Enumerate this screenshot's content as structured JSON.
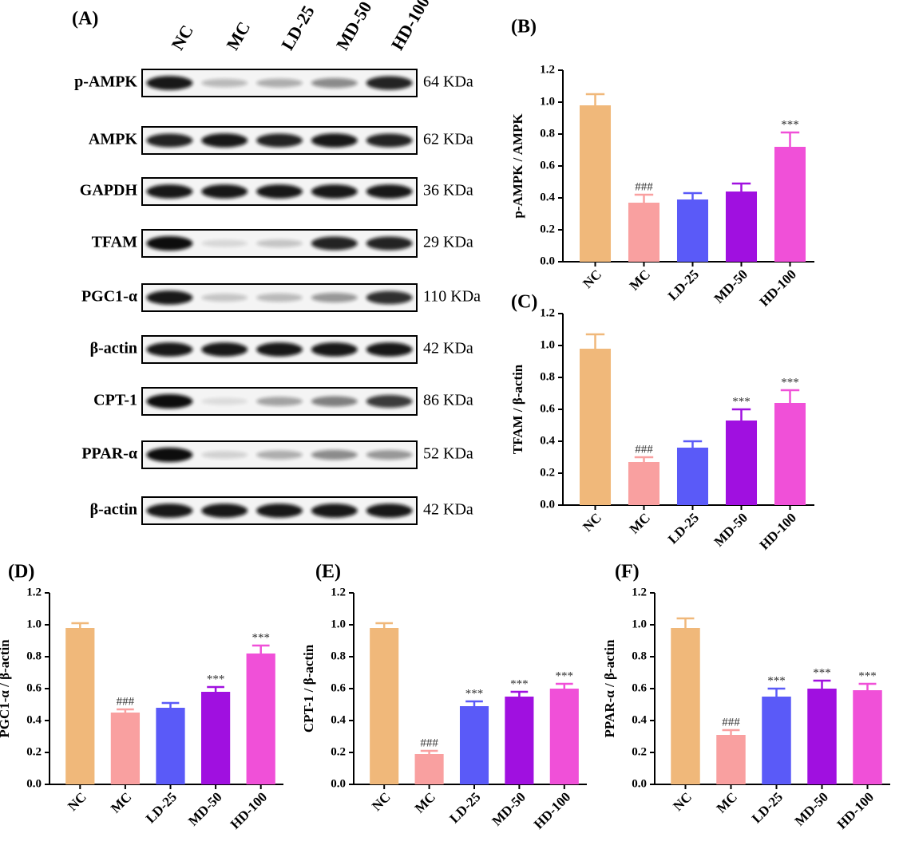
{
  "blot": {
    "panel": "(A)",
    "lanes": [
      "NC",
      "MC",
      "LD-25",
      "MD-50",
      "HD-100"
    ],
    "rows": [
      {
        "protein": "p-AMPK",
        "size": "64 KDa"
      },
      {
        "protein": "AMPK",
        "size": "62 KDa"
      },
      {
        "protein": "GAPDH",
        "size": "36 KDa"
      },
      {
        "protein": "TFAM",
        "size": "29 KDa"
      },
      {
        "protein": "PGC1-α",
        "size": "110 KDa"
      },
      {
        "protein": "β-actin",
        "size": "42 KDa"
      },
      {
        "protein": "CPT-1",
        "size": "86 KDa"
      },
      {
        "protein": "PPAR-α",
        "size": "52 KDa"
      },
      {
        "protein": "β-actin",
        "size": "42 KDa"
      }
    ]
  },
  "chart_data": [
    {
      "type": "bar",
      "panel": "(B)",
      "ylabel": "p-AMPK / AMPK",
      "categories": [
        "NC",
        "MC",
        "LD-25",
        "MD-50",
        "HD-100"
      ],
      "values": [
        0.98,
        0.37,
        0.39,
        0.44,
        0.72
      ],
      "errors": [
        0.07,
        0.05,
        0.04,
        0.05,
        0.09
      ],
      "annotations": [
        null,
        "###",
        null,
        null,
        "***"
      ],
      "colors": [
        "#f0b87a",
        "#f9a0a0",
        "#5a5af8",
        "#a010e0",
        "#f050d8"
      ],
      "ylim": [
        0,
        1.2
      ],
      "yticks": [
        {
          "value": 0,
          "label": "0.0"
        },
        0.2,
        0.4,
        0.6,
        0.8,
        {
          "value": 1,
          "label": "1.0"
        },
        1.2
      ]
    },
    {
      "type": "bar",
      "panel": "(C)",
      "ylabel": "TFAM / β-actin",
      "categories": [
        "NC",
        "MC",
        "LD-25",
        "MD-50",
        "HD-100"
      ],
      "values": [
        0.98,
        0.27,
        0.36,
        0.53,
        0.64
      ],
      "errors": [
        0.09,
        0.03,
        0.04,
        0.07,
        0.08
      ],
      "annotations": [
        null,
        "###",
        null,
        "***",
        "***"
      ],
      "colors": [
        "#f0b87a",
        "#f9a0a0",
        "#5a5af8",
        "#a010e0",
        "#f050d8"
      ],
      "ylim": [
        0,
        1.2
      ],
      "yticks": [
        {
          "value": 0,
          "label": "0.0"
        },
        0.2,
        0.4,
        0.6,
        0.8,
        {
          "value": 1,
          "label": "1.0"
        },
        1.2
      ]
    },
    {
      "type": "bar",
      "panel": "(D)",
      "ylabel": "PGC1-α / β-actin",
      "categories": [
        "NC",
        "MC",
        "LD-25",
        "MD-50",
        "HD-100"
      ],
      "values": [
        0.98,
        0.45,
        0.48,
        0.58,
        0.82
      ],
      "errors": [
        0.03,
        0.02,
        0.03,
        0.03,
        0.05
      ],
      "annotations": [
        null,
        "###",
        null,
        "***",
        "***"
      ],
      "colors": [
        "#f0b87a",
        "#f9a0a0",
        "#5a5af8",
        "#a010e0",
        "#f050d8"
      ],
      "ylim": [
        0,
        1.2
      ],
      "yticks": [
        {
          "value": 0,
          "label": "0.0"
        },
        0.2,
        0.4,
        0.6,
        0.8,
        {
          "value": 1,
          "label": "1.0"
        },
        1.2
      ]
    },
    {
      "type": "bar",
      "panel": "(E)",
      "ylabel": "CPT-1 / β-actin",
      "categories": [
        "NC",
        "MC",
        "LD-25",
        "MD-50",
        "HD-100"
      ],
      "values": [
        0.98,
        0.19,
        0.49,
        0.55,
        0.6
      ],
      "errors": [
        0.03,
        0.02,
        0.03,
        0.03,
        0.03
      ],
      "annotations": [
        null,
        "###",
        "***",
        "***",
        "***"
      ],
      "colors": [
        "#f0b87a",
        "#f9a0a0",
        "#5a5af8",
        "#a010e0",
        "#f050d8"
      ],
      "ylim": [
        0,
        1.2
      ],
      "yticks": [
        {
          "value": 0,
          "label": "0.0"
        },
        0.2,
        0.4,
        0.6,
        0.8,
        {
          "value": 1,
          "label": "1.0"
        },
        1.2
      ]
    },
    {
      "type": "bar",
      "panel": "(F)",
      "ylabel": "PPAR-α / β-actin",
      "categories": [
        "NC",
        "MC",
        "LD-25",
        "MD-50",
        "HD-100"
      ],
      "values": [
        0.98,
        0.31,
        0.55,
        0.6,
        0.59
      ],
      "errors": [
        0.06,
        0.03,
        0.05,
        0.05,
        0.04
      ],
      "annotations": [
        null,
        "###",
        "***",
        "***",
        "***"
      ],
      "colors": [
        "#f0b87a",
        "#f9a0a0",
        "#5a5af8",
        "#a010e0",
        "#f050d8"
      ],
      "ylim": [
        0,
        1.2
      ],
      "yticks": [
        {
          "value": 0,
          "label": "0.0"
        },
        0.2,
        0.4,
        0.6,
        0.8,
        {
          "value": 1,
          "label": "1.0"
        },
        1.2
      ]
    }
  ]
}
